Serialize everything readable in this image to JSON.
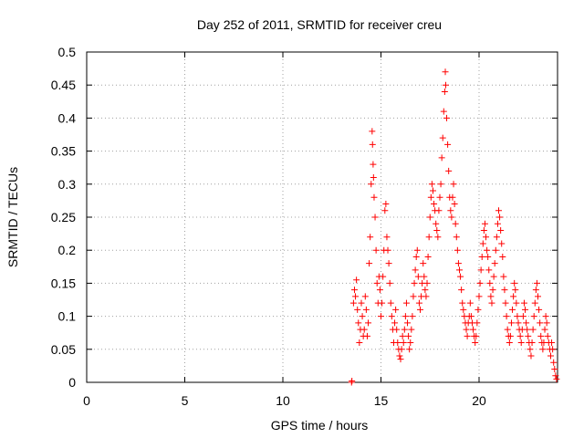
{
  "chart_data": {
    "type": "scatter",
    "title": "Day 252 of 2011, SRMTID for receiver creu",
    "xlabel": "GPS time / hours",
    "ylabel": "SRMTID / TECUs",
    "xlim": [
      0,
      24
    ],
    "ylim": [
      0,
      0.5
    ],
    "xticks": [
      "0",
      "5",
      "10",
      "15",
      "20"
    ],
    "xtick_values": [
      0,
      5,
      10,
      15,
      20
    ],
    "yticks": [
      "0",
      "0.05",
      "0.1",
      "0.15",
      "0.2",
      "0.25",
      "0.3",
      "0.35",
      "0.4",
      "0.45",
      "0.5"
    ],
    "ytick_values": [
      0,
      0.05,
      0.1,
      0.15,
      0.2,
      0.25,
      0.3,
      0.35,
      0.4,
      0.45,
      0.5
    ],
    "grid": true,
    "marker": "+",
    "marker_color": "#ff0000",
    "series": [
      {
        "values": [
          [
            13.5,
            0.0
          ],
          [
            13.52,
            0.002
          ],
          [
            13.6,
            0.12
          ],
          [
            13.65,
            0.14
          ],
          [
            13.7,
            0.13
          ],
          [
            13.75,
            0.155
          ],
          [
            13.8,
            0.11
          ],
          [
            13.85,
            0.09
          ],
          [
            13.9,
            0.06
          ],
          [
            13.95,
            0.08
          ],
          [
            14.0,
            0.12
          ],
          [
            14.05,
            0.1
          ],
          [
            14.1,
            0.07
          ],
          [
            14.15,
            0.08
          ],
          [
            14.2,
            0.13
          ],
          [
            14.25,
            0.11
          ],
          [
            14.3,
            0.07
          ],
          [
            14.35,
            0.09
          ],
          [
            14.4,
            0.18
          ],
          [
            14.45,
            0.22
          ],
          [
            14.5,
            0.3
          ],
          [
            14.55,
            0.38
          ],
          [
            14.57,
            0.36
          ],
          [
            14.6,
            0.33
          ],
          [
            14.62,
            0.31
          ],
          [
            14.65,
            0.28
          ],
          [
            14.7,
            0.25
          ],
          [
            14.75,
            0.2
          ],
          [
            14.8,
            0.15
          ],
          [
            14.85,
            0.12
          ],
          [
            14.9,
            0.16
          ],
          [
            14.95,
            0.14
          ],
          [
            15.0,
            0.1
          ],
          [
            15.05,
            0.12
          ],
          [
            15.1,
            0.16
          ],
          [
            15.15,
            0.2
          ],
          [
            15.2,
            0.26
          ],
          [
            15.25,
            0.27
          ],
          [
            15.3,
            0.22
          ],
          [
            15.35,
            0.2
          ],
          [
            15.4,
            0.18
          ],
          [
            15.45,
            0.15
          ],
          [
            15.5,
            0.12
          ],
          [
            15.55,
            0.1
          ],
          [
            15.6,
            0.08
          ],
          [
            15.65,
            0.06
          ],
          [
            15.7,
            0.09
          ],
          [
            15.75,
            0.11
          ],
          [
            15.8,
            0.08
          ],
          [
            15.85,
            0.06
          ],
          [
            15.9,
            0.05
          ],
          [
            15.95,
            0.04
          ],
          [
            16.0,
            0.035
          ],
          [
            16.05,
            0.05
          ],
          [
            16.1,
            0.07
          ],
          [
            16.15,
            0.06
          ],
          [
            16.2,
            0.08
          ],
          [
            16.25,
            0.1
          ],
          [
            16.3,
            0.12
          ],
          [
            16.35,
            0.09
          ],
          [
            16.4,
            0.07
          ],
          [
            16.45,
            0.05
          ],
          [
            16.5,
            0.06
          ],
          [
            16.55,
            0.08
          ],
          [
            16.6,
            0.1
          ],
          [
            16.65,
            0.13
          ],
          [
            16.7,
            0.15
          ],
          [
            16.75,
            0.17
          ],
          [
            16.8,
            0.19
          ],
          [
            16.85,
            0.2
          ],
          [
            16.9,
            0.16
          ],
          [
            16.95,
            0.12
          ],
          [
            17.0,
            0.11
          ],
          [
            17.05,
            0.13
          ],
          [
            17.1,
            0.15
          ],
          [
            17.15,
            0.18
          ],
          [
            17.2,
            0.16
          ],
          [
            17.25,
            0.14
          ],
          [
            17.3,
            0.13
          ],
          [
            17.35,
            0.15
          ],
          [
            17.4,
            0.19
          ],
          [
            17.45,
            0.22
          ],
          [
            17.5,
            0.25
          ],
          [
            17.55,
            0.28
          ],
          [
            17.6,
            0.3
          ],
          [
            17.65,
            0.29
          ],
          [
            17.7,
            0.27
          ],
          [
            17.75,
            0.26
          ],
          [
            17.8,
            0.24
          ],
          [
            17.85,
            0.23
          ],
          [
            17.9,
            0.22
          ],
          [
            17.95,
            0.26
          ],
          [
            18.0,
            0.28
          ],
          [
            18.05,
            0.3
          ],
          [
            18.1,
            0.34
          ],
          [
            18.15,
            0.37
          ],
          [
            18.2,
            0.41
          ],
          [
            18.25,
            0.44
          ],
          [
            18.28,
            0.47
          ],
          [
            18.3,
            0.45
          ],
          [
            18.35,
            0.4
          ],
          [
            18.4,
            0.36
          ],
          [
            18.45,
            0.32
          ],
          [
            18.5,
            0.28
          ],
          [
            18.55,
            0.26
          ],
          [
            18.6,
            0.25
          ],
          [
            18.65,
            0.28
          ],
          [
            18.7,
            0.3
          ],
          [
            18.75,
            0.27
          ],
          [
            18.8,
            0.24
          ],
          [
            18.85,
            0.22
          ],
          [
            18.9,
            0.2
          ],
          [
            18.95,
            0.18
          ],
          [
            19.0,
            0.17
          ],
          [
            19.05,
            0.16
          ],
          [
            19.1,
            0.14
          ],
          [
            19.15,
            0.12
          ],
          [
            19.2,
            0.11
          ],
          [
            19.25,
            0.1
          ],
          [
            19.3,
            0.09
          ],
          [
            19.35,
            0.08
          ],
          [
            19.4,
            0.07
          ],
          [
            19.45,
            0.09
          ],
          [
            19.5,
            0.1
          ],
          [
            19.55,
            0.12
          ],
          [
            19.6,
            0.1
          ],
          [
            19.65,
            0.09
          ],
          [
            19.7,
            0.08
          ],
          [
            19.75,
            0.07
          ],
          [
            19.8,
            0.06
          ],
          [
            19.85,
            0.07
          ],
          [
            19.9,
            0.09
          ],
          [
            19.95,
            0.11
          ],
          [
            20.0,
            0.13
          ],
          [
            20.05,
            0.15
          ],
          [
            20.1,
            0.17
          ],
          [
            20.15,
            0.19
          ],
          [
            20.2,
            0.21
          ],
          [
            20.25,
            0.23
          ],
          [
            20.3,
            0.24
          ],
          [
            20.35,
            0.22
          ],
          [
            20.4,
            0.2
          ],
          [
            20.45,
            0.19
          ],
          [
            20.5,
            0.17
          ],
          [
            20.55,
            0.15
          ],
          [
            20.6,
            0.13
          ],
          [
            20.65,
            0.12
          ],
          [
            20.7,
            0.14
          ],
          [
            20.75,
            0.16
          ],
          [
            20.8,
            0.18
          ],
          [
            20.85,
            0.2
          ],
          [
            20.9,
            0.22
          ],
          [
            20.95,
            0.24
          ],
          [
            21.0,
            0.26
          ],
          [
            21.05,
            0.25
          ],
          [
            21.1,
            0.23
          ],
          [
            21.15,
            0.21
          ],
          [
            21.2,
            0.19
          ],
          [
            21.25,
            0.16
          ],
          [
            21.3,
            0.14
          ],
          [
            21.35,
            0.12
          ],
          [
            21.4,
            0.1
          ],
          [
            21.45,
            0.08
          ],
          [
            21.5,
            0.07
          ],
          [
            21.55,
            0.06
          ],
          [
            21.6,
            0.07
          ],
          [
            21.65,
            0.09
          ],
          [
            21.7,
            0.11
          ],
          [
            21.75,
            0.13
          ],
          [
            21.8,
            0.15
          ],
          [
            21.85,
            0.14
          ],
          [
            21.9,
            0.12
          ],
          [
            21.95,
            0.1
          ],
          [
            22.0,
            0.09
          ],
          [
            22.05,
            0.08
          ],
          [
            22.1,
            0.07
          ],
          [
            22.15,
            0.06
          ],
          [
            22.2,
            0.08
          ],
          [
            22.25,
            0.1
          ],
          [
            22.3,
            0.12
          ],
          [
            22.35,
            0.11
          ],
          [
            22.4,
            0.09
          ],
          [
            22.45,
            0.08
          ],
          [
            22.5,
            0.07
          ],
          [
            22.55,
            0.06
          ],
          [
            22.6,
            0.05
          ],
          [
            22.65,
            0.04
          ],
          [
            22.7,
            0.06
          ],
          [
            22.75,
            0.08
          ],
          [
            22.8,
            0.1
          ],
          [
            22.85,
            0.12
          ],
          [
            22.9,
            0.14
          ],
          [
            22.95,
            0.15
          ],
          [
            23.0,
            0.13
          ],
          [
            23.05,
            0.11
          ],
          [
            23.1,
            0.09
          ],
          [
            23.15,
            0.07
          ],
          [
            23.2,
            0.06
          ],
          [
            23.25,
            0.05
          ],
          [
            23.3,
            0.06
          ],
          [
            23.35,
            0.08
          ],
          [
            23.4,
            0.1
          ],
          [
            23.45,
            0.09
          ],
          [
            23.5,
            0.07
          ],
          [
            23.55,
            0.06
          ],
          [
            23.6,
            0.05
          ],
          [
            23.65,
            0.04
          ],
          [
            23.7,
            0.06
          ],
          [
            23.75,
            0.05
          ],
          [
            23.8,
            0.03
          ],
          [
            23.85,
            0.02
          ],
          [
            23.9,
            0.01
          ],
          [
            23.95,
            0.005
          ]
        ]
      }
    ]
  }
}
